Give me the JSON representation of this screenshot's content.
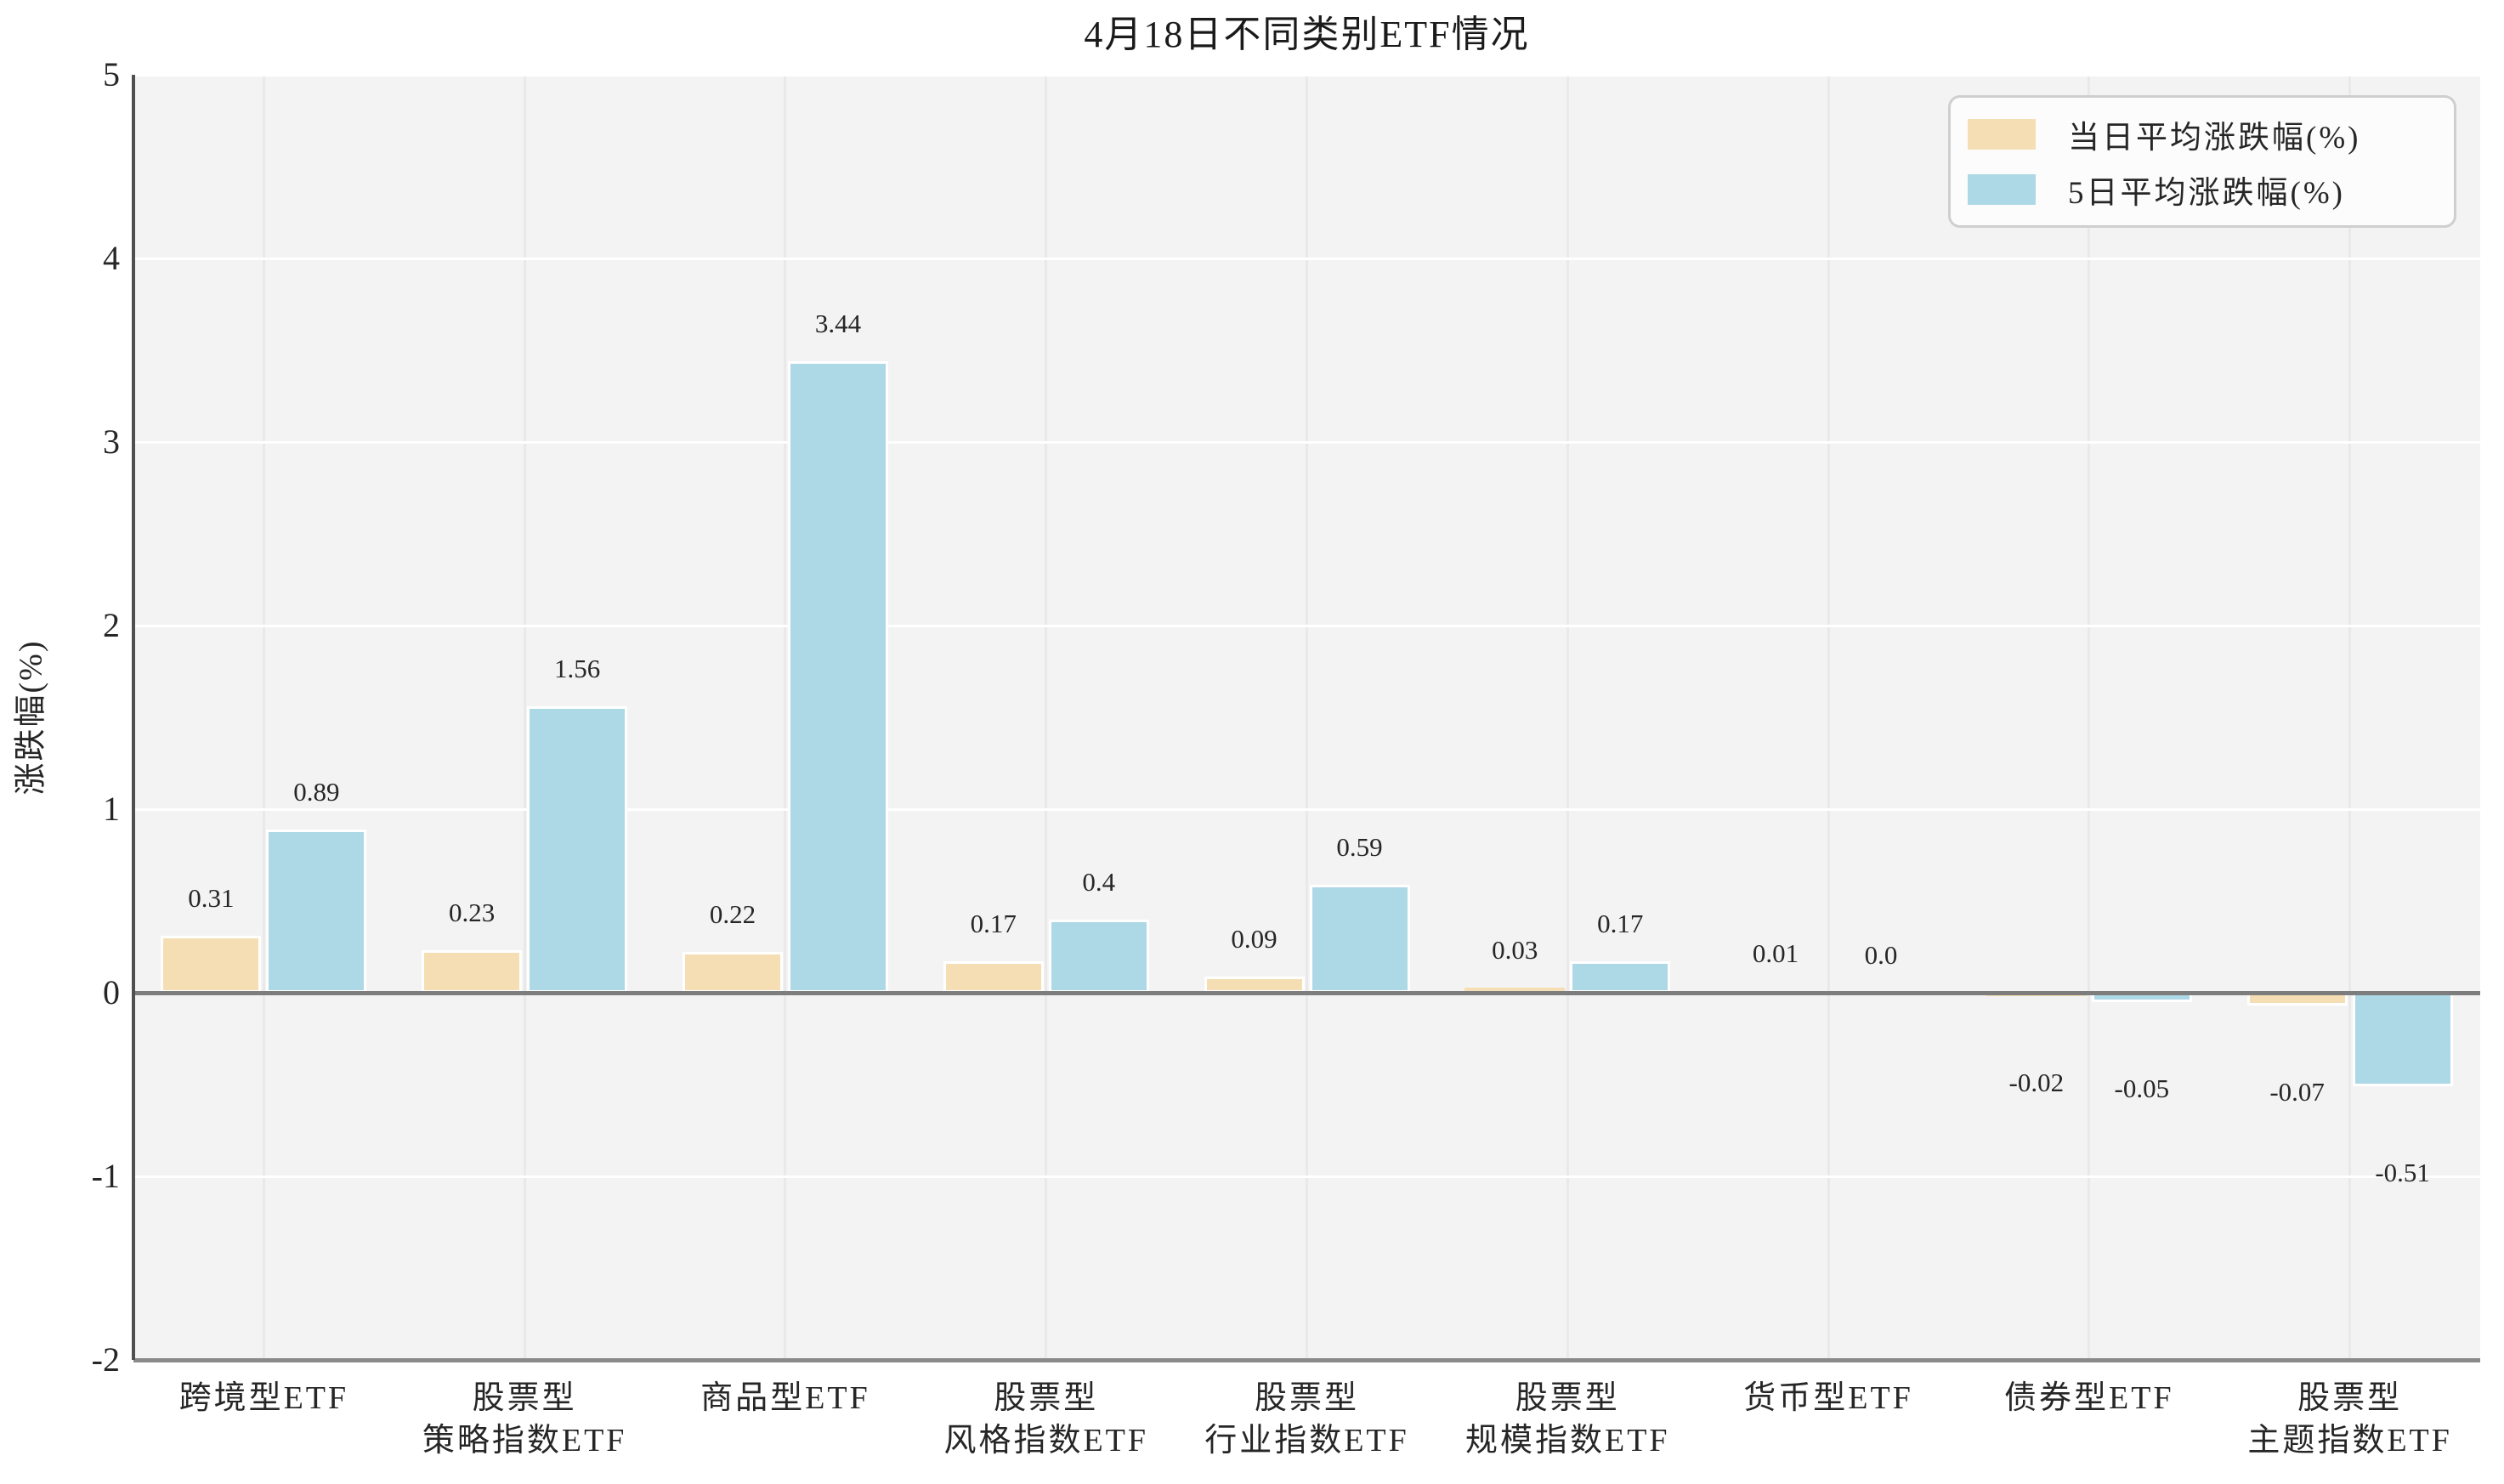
{
  "chart_data": {
    "type": "bar",
    "title": "4月18日不同类别ETF情况",
    "xlabel": "",
    "ylabel": "涨跌幅(%)",
    "ylim": [
      -2,
      5
    ],
    "yticks": [
      5,
      4,
      3,
      2,
      1,
      0,
      -1,
      -2
    ],
    "grid": true,
    "legend_position": "upper-right",
    "categories": [
      "跨境型ETF",
      "股票型\n策略指数ETF",
      "商品型ETF",
      "股票型\n风格指数ETF",
      "股票型\n行业指数ETF",
      "股票型\n规模指数ETF",
      "货币型ETF",
      "债券型ETF",
      "股票型\n主题指数ETF"
    ],
    "series": [
      {
        "name": "当日平均涨跌幅(%)",
        "color": "#f5deb3",
        "values": [
          0.31,
          0.23,
          0.22,
          0.17,
          0.09,
          0.03,
          0.01,
          -0.02,
          -0.07
        ],
        "labels": [
          "0.31",
          "0.23",
          "0.22",
          "0.17",
          "0.09",
          "0.03",
          "0.01",
          "-0.02",
          "-0.07"
        ]
      },
      {
        "name": "5日平均涨跌幅(%)",
        "color": "#add8e6",
        "values": [
          0.89,
          1.56,
          3.44,
          0.4,
          0.59,
          0.17,
          0.0,
          -0.05,
          -0.51
        ],
        "labels": [
          "0.89",
          "1.56",
          "3.44",
          "0.4",
          "0.59",
          "0.17",
          "0.0",
          "-0.05",
          "-0.51"
        ]
      }
    ]
  },
  "style": {
    "plot_bg": "#f3f3f3",
    "h_grid": "#ffffff",
    "v_grid": "#e9e9e9",
    "bar_edge": "#ffffff",
    "zero_line": "#7d7d7d",
    "left_spine": "#4f4f4f",
    "bottom_spine": "#8a8a8a",
    "text": "#262626",
    "legend_bg": "#fcfcfc",
    "legend_border": "#cfcfcf"
  }
}
